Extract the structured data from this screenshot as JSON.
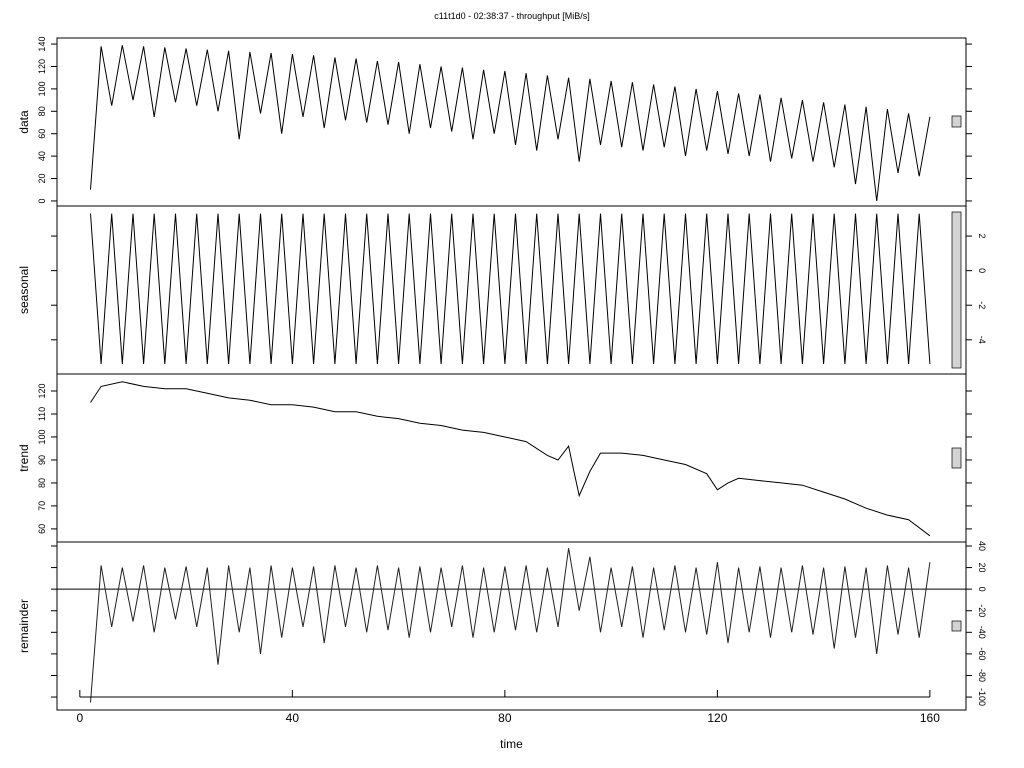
{
  "chart_data": [
    {
      "type": "line",
      "title": "c11t1d0 - 02:38:37 - throughput [MiB/s]",
      "ylabel": "data",
      "yaxis": "left",
      "x": [
        2,
        4,
        6,
        8,
        10,
        12,
        14,
        16,
        18,
        20,
        22,
        24,
        26,
        28,
        30,
        32,
        34,
        36,
        38,
        40,
        42,
        44,
        46,
        48,
        50,
        52,
        54,
        56,
        58,
        60,
        62,
        64,
        66,
        68,
        70,
        72,
        74,
        76,
        78,
        80,
        82,
        84,
        86,
        88,
        90,
        92,
        94,
        96,
        98,
        100,
        102,
        104,
        106,
        108,
        110,
        112,
        114,
        116,
        118,
        120,
        122,
        124,
        126,
        128,
        130,
        132,
        134,
        136,
        138,
        140,
        142,
        144,
        146,
        148,
        150,
        152,
        154,
        156,
        158,
        160
      ],
      "values": [
        10,
        138,
        85,
        139,
        90,
        138,
        75,
        137,
        88,
        136,
        85,
        135,
        80,
        134,
        55,
        133,
        78,
        132,
        60,
        131,
        75,
        130,
        65,
        128,
        72,
        127,
        70,
        125,
        68,
        124,
        60,
        122,
        65,
        120,
        62,
        119,
        55,
        117,
        60,
        116,
        50,
        114,
        45,
        112,
        55,
        110,
        35,
        109,
        50,
        107,
        48,
        106,
        45,
        104,
        48,
        102,
        40,
        100,
        45,
        98,
        42,
        96,
        40,
        95,
        35,
        92,
        38,
        90,
        35,
        88,
        30,
        86,
        15,
        84,
        0,
        82,
        25,
        78,
        22,
        75
      ],
      "color": "#000000",
      "xlim": [
        -4.3,
        166.8
      ],
      "ylim": [
        -4.5,
        145.4
      ],
      "yticks": [
        0,
        20,
        40,
        60,
        80,
        100,
        120,
        140
      ]
    },
    {
      "type": "line",
      "ylabel": "seasonal",
      "yaxis": "right",
      "x": [
        2,
        4,
        6,
        8,
        10,
        12,
        14,
        16,
        18,
        20,
        22,
        24,
        26,
        28,
        30,
        32,
        34,
        36,
        38,
        40,
        42,
        44,
        46,
        48,
        50,
        52,
        54,
        56,
        58,
        60,
        62,
        64,
        66,
        68,
        70,
        72,
        74,
        76,
        78,
        80,
        82,
        84,
        86,
        88,
        90,
        92,
        94,
        96,
        98,
        100,
        102,
        104,
        106,
        108,
        110,
        112,
        114,
        116,
        118,
        120,
        122,
        124,
        126,
        128,
        130,
        132,
        134,
        136,
        138,
        140,
        142,
        144,
        146,
        148,
        150,
        152,
        154,
        156,
        158,
        160
      ],
      "values": [
        3.3,
        -5.4,
        3.3,
        -5.4,
        3.3,
        -5.4,
        3.3,
        -5.4,
        3.3,
        -5.4,
        3.3,
        -5.4,
        3.3,
        -5.4,
        3.3,
        -5.4,
        3.3,
        -5.4,
        3.3,
        -5.4,
        3.3,
        -5.4,
        3.3,
        -5.4,
        3.3,
        -5.4,
        3.3,
        -5.4,
        3.3,
        -5.4,
        3.3,
        -5.4,
        3.3,
        -5.4,
        3.3,
        -5.4,
        3.3,
        -5.4,
        3.3,
        -5.4,
        3.3,
        -5.4,
        3.3,
        -5.4,
        3.3,
        -5.4,
        3.3,
        -5.4,
        3.3,
        -5.4,
        3.3,
        -5.4,
        3.3,
        -5.4,
        3.3,
        -5.4,
        3.3,
        -5.4,
        3.3,
        -5.4,
        3.3,
        -5.4,
        3.3,
        -5.4,
        3.3,
        -5.4,
        3.3,
        -5.4,
        3.3,
        -5.4,
        3.3,
        -5.4,
        3.3,
        -5.4,
        3.3,
        -5.4,
        3.3,
        -5.4,
        3.3,
        -5.4
      ],
      "color": "#000000",
      "xlim": [
        -4.3,
        166.8
      ],
      "ylim": [
        -5.98,
        3.74
      ],
      "yticks": [
        -4,
        -2,
        0,
        2
      ]
    },
    {
      "type": "line",
      "ylabel": "trend",
      "yaxis": "left",
      "x": [
        2,
        4,
        8,
        12,
        16,
        20,
        24,
        28,
        32,
        36,
        40,
        44,
        48,
        52,
        56,
        60,
        64,
        68,
        72,
        76,
        80,
        84,
        88,
        90,
        92,
        93,
        94,
        96,
        98,
        102,
        106,
        110,
        114,
        118,
        120,
        122,
        124,
        128,
        132,
        136,
        140,
        144,
        148,
        152,
        156,
        160
      ],
      "values": [
        115,
        122,
        124,
        122,
        121,
        121,
        119,
        117,
        116,
        114,
        114,
        113,
        111,
        111,
        109,
        108,
        106,
        105,
        103,
        102,
        100,
        98,
        92,
        90,
        96,
        85,
        74.5,
        85,
        93,
        93,
        92,
        90,
        88,
        84,
        77,
        80,
        82,
        81,
        80,
        79,
        76,
        73,
        69,
        66,
        64,
        57
      ],
      "color": "#000000",
      "xlim": [
        -4.3,
        166.8
      ],
      "ylim": [
        54.3,
        127.4
      ],
      "yticks": [
        60,
        70,
        80,
        90,
        100,
        110,
        120
      ]
    },
    {
      "type": "line",
      "ylabel": "remainder",
      "yaxis": "right",
      "xlabel": "time",
      "hline": 0,
      "x": [
        2,
        4,
        6,
        8,
        10,
        12,
        14,
        16,
        18,
        20,
        22,
        24,
        26,
        28,
        30,
        32,
        34,
        36,
        38,
        40,
        42,
        44,
        46,
        48,
        50,
        52,
        54,
        56,
        58,
        60,
        62,
        64,
        66,
        68,
        70,
        72,
        74,
        76,
        78,
        80,
        82,
        84,
        86,
        88,
        90,
        92,
        94,
        96,
        98,
        100,
        102,
        104,
        106,
        108,
        110,
        112,
        114,
        116,
        118,
        120,
        122,
        124,
        126,
        128,
        130,
        132,
        134,
        136,
        138,
        140,
        142,
        144,
        146,
        148,
        150,
        152,
        154,
        156,
        158,
        160
      ],
      "values": [
        -105,
        22,
        -35,
        20,
        -30,
        22,
        -40,
        20,
        -28,
        21,
        -35,
        20,
        -70,
        22,
        -40,
        20,
        -60,
        22,
        -45,
        20,
        -35,
        21,
        -50,
        22,
        -35,
        20,
        -40,
        22,
        -38,
        20,
        -45,
        21,
        -40,
        20,
        -35,
        22,
        -45,
        20,
        -40,
        21,
        -38,
        22,
        -40,
        20,
        -35,
        38,
        -20,
        30,
        -40,
        20,
        -35,
        21,
        -45,
        20,
        -38,
        22,
        -40,
        20,
        -42,
        25,
        -50,
        20,
        -40,
        21,
        -45,
        20,
        -40,
        22,
        -42,
        20,
        -55,
        21,
        -45,
        20,
        -60,
        22,
        -42,
        20,
        -45,
        25
      ],
      "color": "#222222",
      "xlim": [
        -4.3,
        166.8
      ],
      "ylim": [
        -112,
        43.7
      ],
      "yticks": [
        -100,
        -80,
        -60,
        -40,
        -20,
        0,
        20,
        40
      ],
      "xticks": [
        0,
        40,
        80,
        120,
        160
      ]
    }
  ]
}
